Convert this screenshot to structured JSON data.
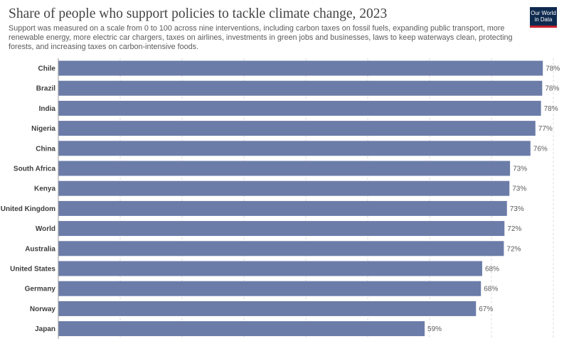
{
  "title": "Share of people who support policies to tackle climate change, 2023",
  "subtitle": "Support was measured on a scale from 0 to 100 across nine interventions, including carbon taxes on fossil fuels, expanding public transport, more renewable energy, more electric car chargers, taxes on airlines, investments in green jobs and businesses, laws to keep waterways clean, protecting forests, and increasing taxes on carbon-intensive foods.",
  "logo": {
    "line1": "Our World",
    "line2": "in Data"
  },
  "colors": {
    "bar": "#6b7ca8",
    "title": "#444444"
  },
  "chart_data": {
    "type": "bar",
    "orientation": "horizontal",
    "categories": [
      "Chile",
      "Brazil",
      "India",
      "Nigeria",
      "China",
      "South Africa",
      "Kenya",
      "United Kingdom",
      "World",
      "Australia",
      "United States",
      "Germany",
      "Norway",
      "Japan"
    ],
    "values": [
      78.3,
      78.2,
      78.0,
      77.1,
      76.3,
      73.0,
      72.9,
      72.5,
      72.1,
      72.0,
      68.5,
      68.3,
      67.5,
      59.2
    ],
    "value_labels": [
      "78%",
      "78%",
      "78%",
      "77%",
      "76%",
      "73%",
      "73%",
      "73%",
      "72%",
      "72%",
      "68%",
      "68%",
      "67%",
      "59%"
    ],
    "xlim": [
      0,
      80
    ],
    "grid": true
  }
}
